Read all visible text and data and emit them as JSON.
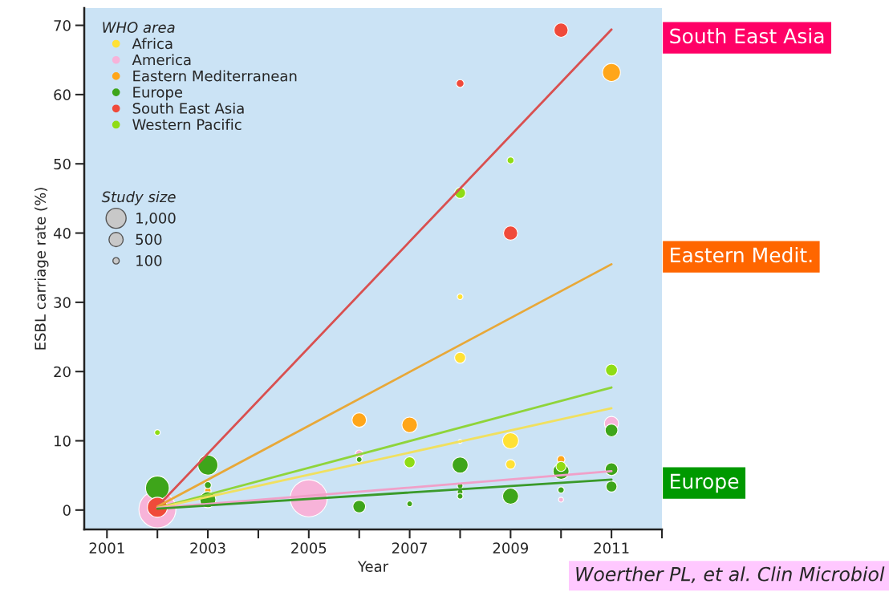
{
  "chart_data": {
    "type": "bubble",
    "xlabel": "Year",
    "ylabel": "ESBL carriage rate (%)",
    "legend_title": "WHO area",
    "legend": "top left",
    "grid": false,
    "xlim": [
      2000.55,
      2012
    ],
    "xticks": [
      2001,
      {
        "value": 2002,
        "label": null
      },
      2003,
      {
        "value": 2004,
        "label": null
      },
      2005,
      {
        "value": 2006,
        "label": null
      },
      2007,
      {
        "value": 2008,
        "label": null
      },
      2009,
      {
        "value": 2010,
        "label": null
      },
      2011,
      {
        "value": 2012,
        "label": null
      }
    ],
    "ylim": [
      -2.8,
      72.5
    ],
    "yticks": [
      0,
      10,
      20,
      30,
      40,
      50,
      60,
      70
    ],
    "size_legend": [
      {
        "value": 1000,
        "label": "1,000"
      },
      500,
      100
    ],
    "series": [
      {
        "name": "Africa",
        "color": "#ffe135",
        "x": [
          2008,
          2008,
          2009,
          2009,
          2008
        ],
        "values": [
          22.0,
          9.9,
          10.0,
          6.6,
          30.8
        ],
        "sizes": [
          300,
          40,
          640,
          230,
          80
        ]
      },
      {
        "name": "America",
        "color": "#f7b3d9",
        "x": [
          2002,
          2005,
          2006,
          2010,
          2011
        ],
        "values": [
          0.1,
          1.7,
          8.1,
          1.5,
          12.5
        ],
        "sizes": [
          3400,
          3400,
          150,
          60,
          500
        ]
      },
      {
        "name": "Eastern Mediterranean",
        "color": "#ffa61a",
        "x": [
          2003,
          2006,
          2007,
          2010,
          2011
        ],
        "values": [
          2.8,
          13.0,
          12.3,
          7.3,
          63.2
        ],
        "sizes": [
          100,
          520,
          600,
          150,
          800
        ]
      },
      {
        "name": "Europe",
        "color": "#3ea51a",
        "x": [
          2002,
          2003,
          2003,
          2003,
          2006,
          2006,
          2007,
          2008,
          2008,
          2008,
          2008,
          2009,
          2010,
          2010,
          2011,
          2011,
          2011
        ],
        "values": [
          3.2,
          6.5,
          3.6,
          1.5,
          7.3,
          0.5,
          0.9,
          6.5,
          3.5,
          2.6,
          2.0,
          2.0,
          5.6,
          2.9,
          11.5,
          5.9,
          3.4
        ],
        "sizes": [
          1400,
          1000,
          120,
          640,
          80,
          400,
          80,
          640,
          80,
          80,
          80,
          640,
          640,
          100,
          400,
          400,
          300
        ]
      },
      {
        "name": "South East Asia",
        "color": "#f04a3a",
        "x": [
          2002,
          2010,
          2008,
          2009
        ],
        "values": [
          0.4,
          69.3,
          61.6,
          40.0
        ],
        "sizes": [
          1000,
          500,
          150,
          500
        ]
      },
      {
        "name": "Western Pacific",
        "color": "#8fdc14",
        "x": [
          2002,
          2007,
          2010,
          2011,
          2009,
          2008
        ],
        "values": [
          11.2,
          6.9,
          6.3,
          20.2,
          50.5,
          45.8
        ],
        "sizes": [
          80,
          300,
          250,
          350,
          120,
          300
        ]
      },
      {
        "type": "line",
        "color": "#d95050",
        "x": [
          2002,
          2011
        ],
        "values": [
          0.5,
          69.4
        ]
      },
      {
        "type": "line",
        "color": "#e8a838",
        "x": [
          2002,
          2011
        ],
        "values": [
          0.5,
          35.5
        ]
      },
      {
        "type": "line",
        "color": "#8fd43a",
        "x": [
          2002,
          2011
        ],
        "values": [
          0.3,
          17.7
        ]
      },
      {
        "type": "line",
        "color": "#f0e060",
        "x": [
          2002,
          2011
        ],
        "values": [
          0.3,
          14.7
        ]
      },
      {
        "type": "line",
        "color": "#f0a0c8",
        "x": [
          2002,
          2011
        ],
        "values": [
          0.3,
          5.6
        ]
      },
      {
        "type": "line",
        "color": "#3a9a2a",
        "x": [
          2002,
          2011
        ],
        "values": [
          0.2,
          4.4
        ]
      }
    ],
    "annotations": [
      "Study size",
      "South East Asia",
      "Eastern Medit.",
      "Europe",
      "Woerther PL, et al. Clin Microbiol"
    ]
  }
}
